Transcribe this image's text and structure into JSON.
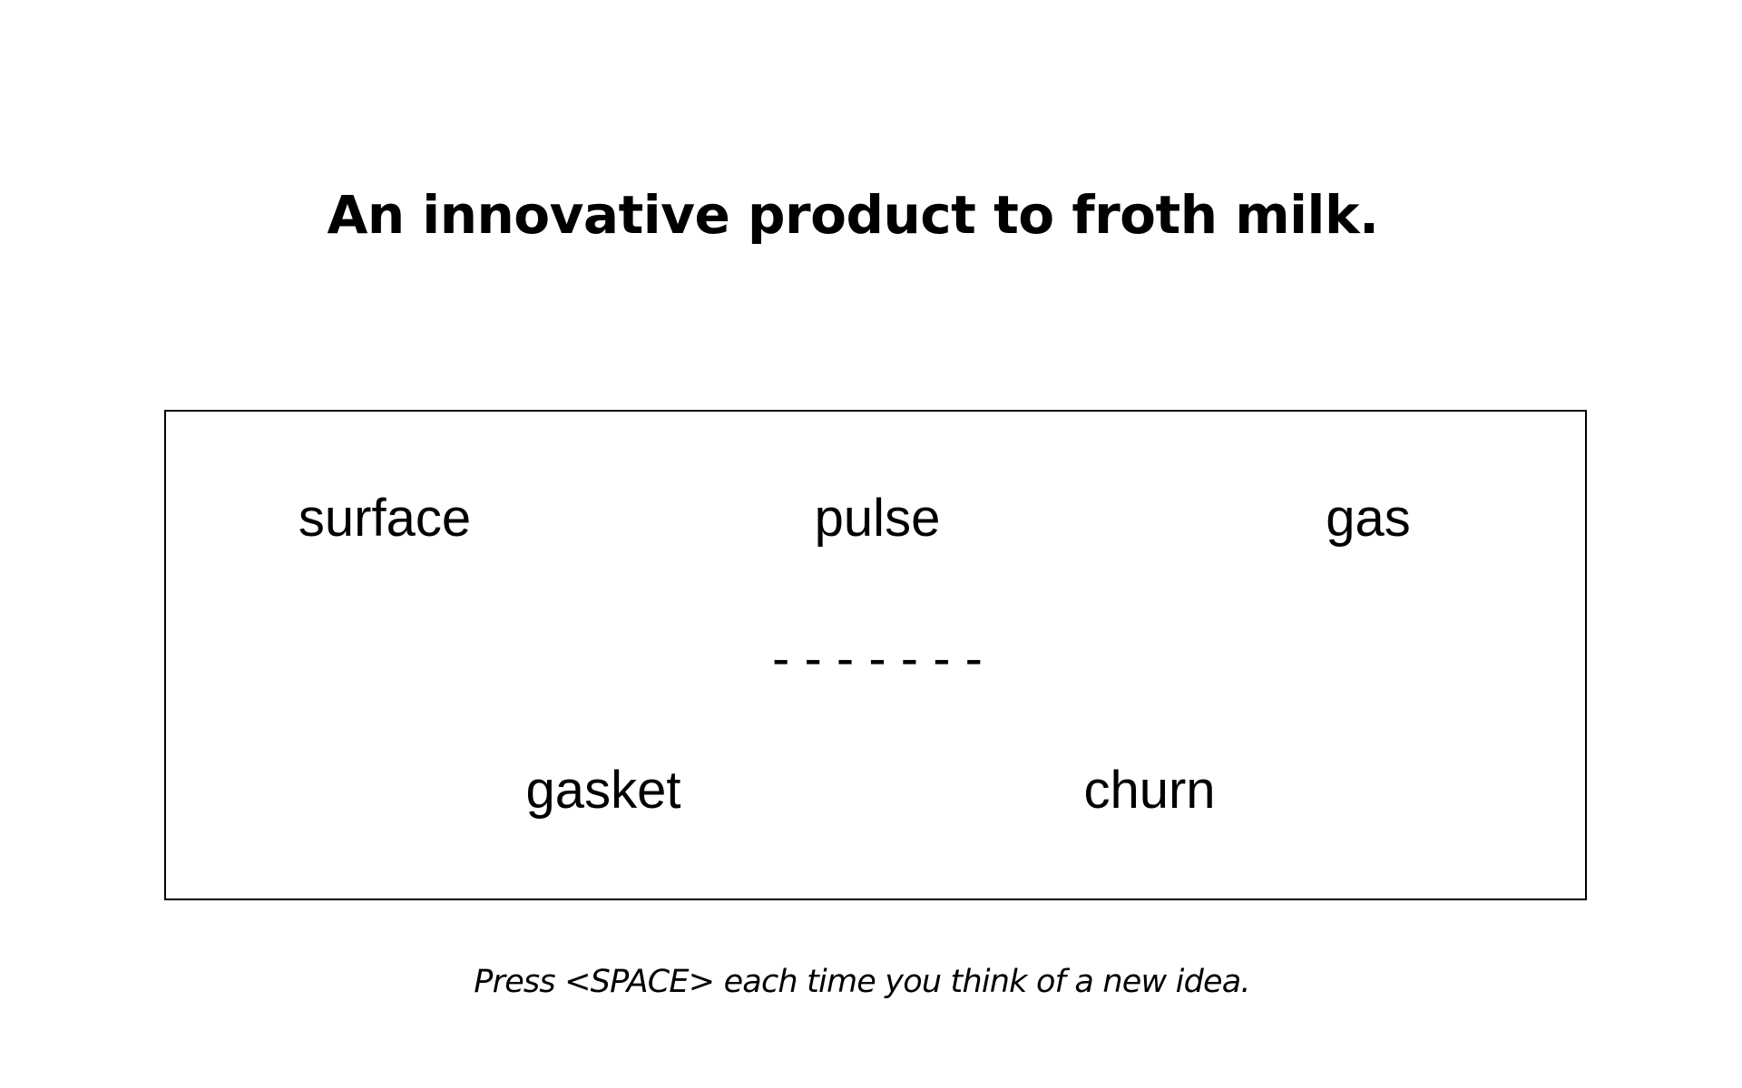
{
  "prompt": {
    "title": "An innovative product to froth milk."
  },
  "word_box": {
    "top_row": [
      "surface",
      "pulse",
      "gas"
    ],
    "separator": "- - - - - - -",
    "bottom_row": [
      "gasket",
      "churn"
    ]
  },
  "instruction": "Press <SPACE> each time you think of a new idea."
}
